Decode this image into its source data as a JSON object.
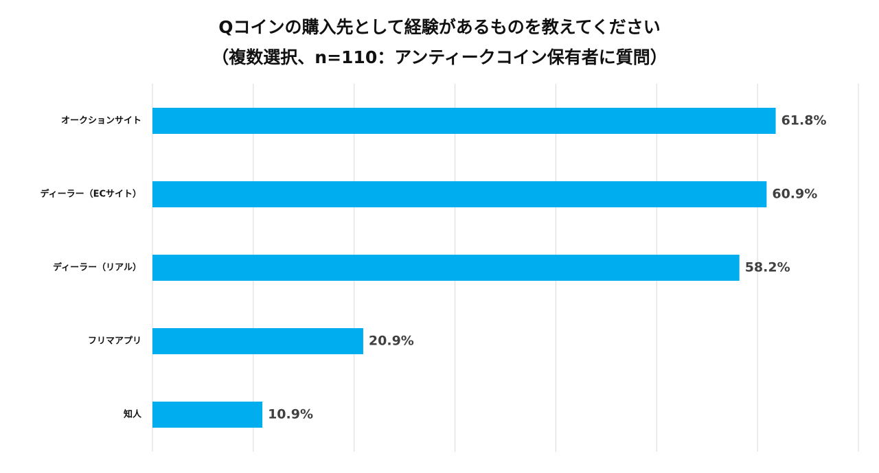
{
  "chart_data": {
    "type": "bar",
    "orientation": "horizontal",
    "title": "Qコインの購入先として経験があるものを教えてください",
    "subtitle": "（複数選択、n=110：アンティークコイン保有者に質問）",
    "categories": [
      "オークションサイト",
      "ディーラー（ECサイト）",
      "ディーラー（リアル）",
      "フリマアプリ",
      "知人"
    ],
    "values": [
      61.8,
      60.9,
      58.2,
      20.9,
      10.9
    ],
    "value_labels": [
      "61.8%",
      "60.9%",
      "58.2%",
      "20.9%",
      "10.9%"
    ],
    "xlim": [
      0,
      70
    ],
    "grid": true,
    "legend": "none",
    "xlabel": "",
    "ylabel": "",
    "bar_color": "#00AEEF",
    "grid_color": "#D9D9D9"
  }
}
